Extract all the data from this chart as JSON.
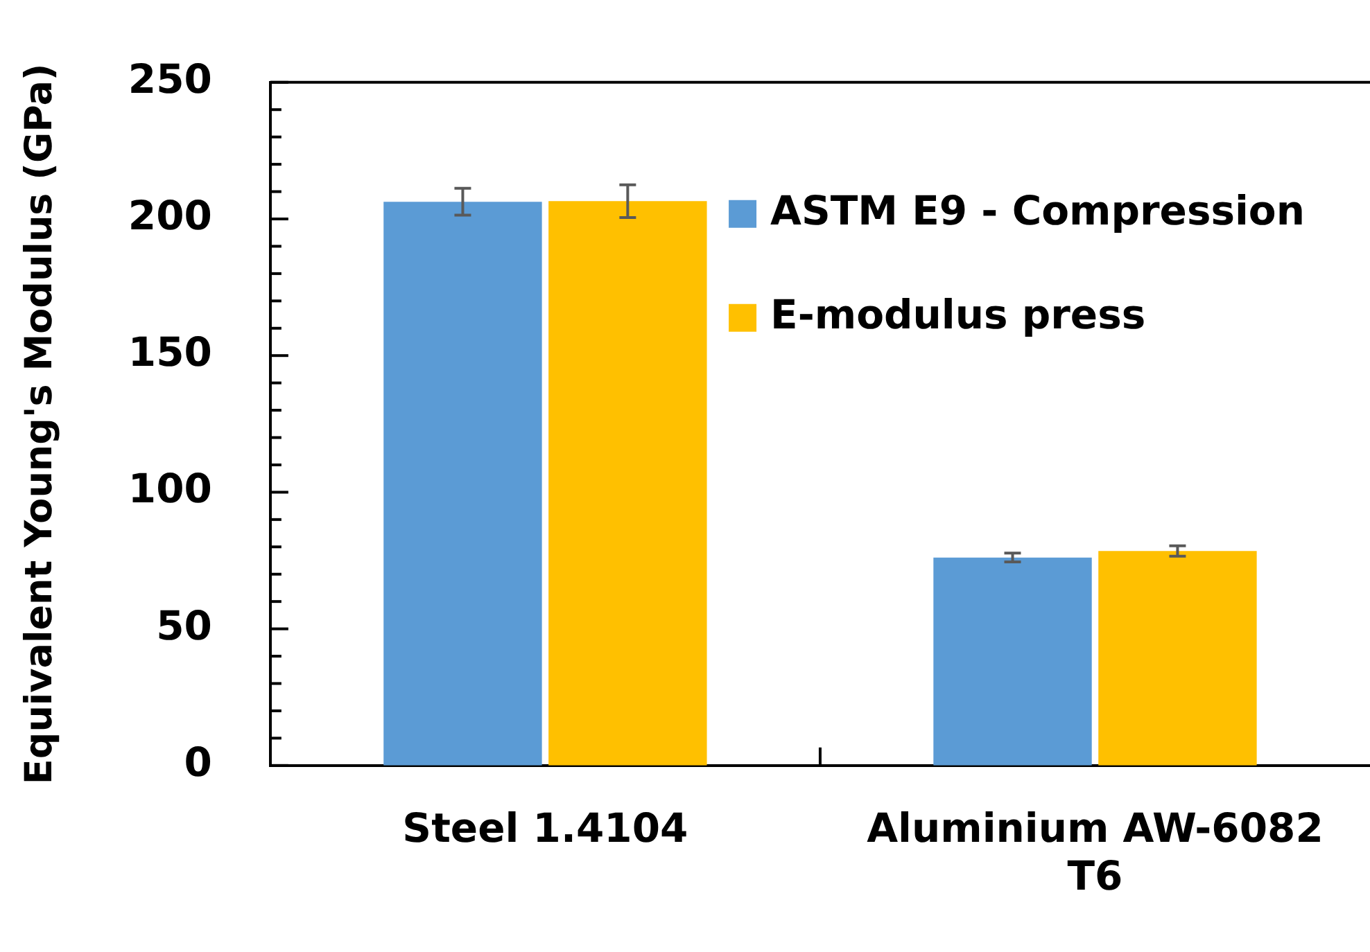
{
  "chart_data": {
    "type": "bar",
    "ylabel": "Equivalent Young's Modulus (GPa)",
    "categories": [
      "Steel 1.4104",
      "Aluminium AW-6082 T6"
    ],
    "series": [
      {
        "name": "ASTM E9 - Compression",
        "color": "#5b9bd5",
        "values": [
          206.3,
          76.1
        ],
        "errors": [
          4.9,
          1.6
        ]
      },
      {
        "name": "E-modulus press",
        "color": "#ffc000",
        "values": [
          206.5,
          78.5
        ],
        "errors": [
          6,
          1.9
        ]
      }
    ],
    "ylim": [
      0,
      250
    ],
    "yticks": [
      0,
      {
        "value": 10,
        "label": null
      },
      {
        "value": 20,
        "label": null
      },
      {
        "value": 30,
        "label": null
      },
      {
        "value": 40,
        "label": null
      },
      50,
      {
        "value": 60,
        "label": null
      },
      {
        "value": 70,
        "label": null
      },
      {
        "value": 80,
        "label": null
      },
      {
        "value": 90,
        "label": null
      },
      100,
      {
        "value": 110,
        "label": null
      },
      {
        "value": 120,
        "label": null
      },
      {
        "value": 130,
        "label": null
      },
      {
        "value": 140,
        "label": null
      },
      150,
      {
        "value": 160,
        "label": null
      },
      {
        "value": 170,
        "label": null
      },
      {
        "value": 180,
        "label": null
      },
      {
        "value": 190,
        "label": null
      },
      200,
      {
        "value": 210,
        "label": null
      },
      {
        "value": 220,
        "label": null
      },
      {
        "value": 230,
        "label": null
      },
      {
        "value": 240,
        "label": null
      },
      250
    ],
    "grid": false,
    "legend": "top right"
  }
}
